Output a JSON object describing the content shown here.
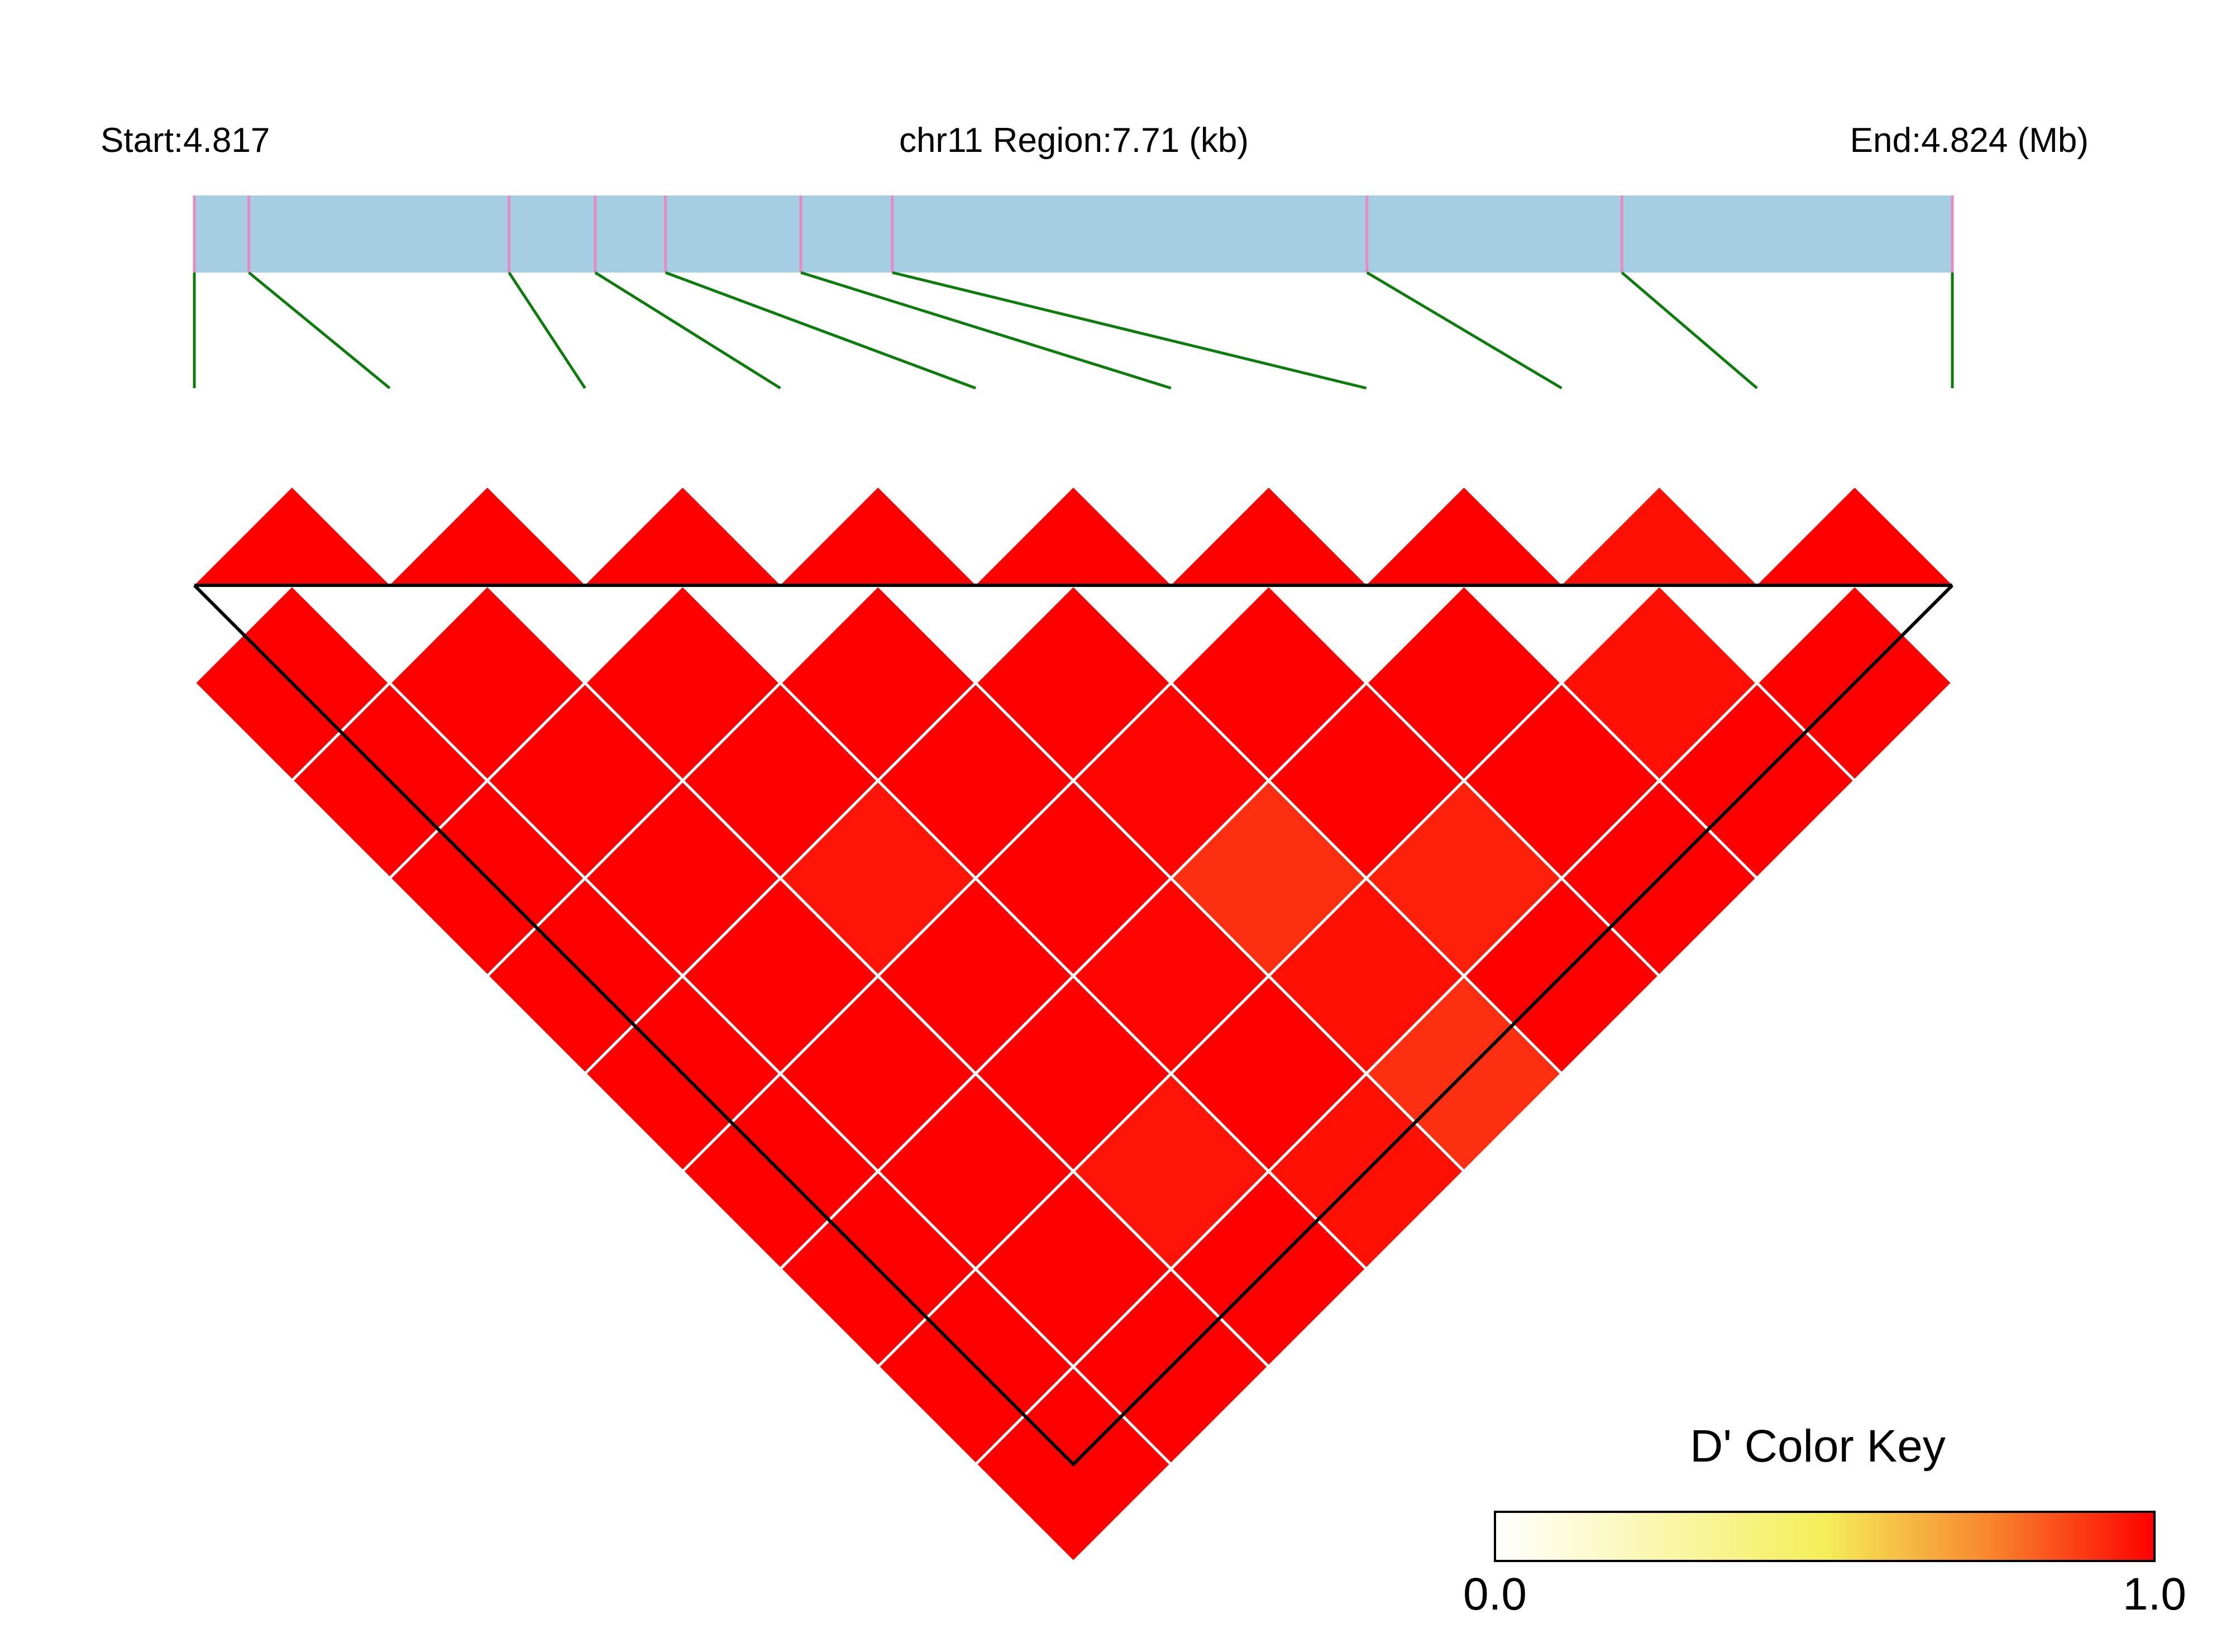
{
  "chart_data": {
    "type": "heatmap",
    "subtype": "linkage-disequilibrium",
    "header": {
      "start_label": "Start:4.817",
      "region_label": "chr11 Region:7.71 (kb)",
      "end_label": "End:4.824 (Mb)"
    },
    "region": {
      "start_mb": 4.817,
      "end_mb": 4.824
    },
    "snp_positions_frac": [
      0.0,
      0.031,
      0.179,
      0.228,
      0.268,
      0.345,
      0.397,
      0.667,
      0.812,
      1.0
    ],
    "matrix": [
      [
        null,
        1.0,
        1.0,
        1.0,
        1.0,
        1.0,
        1.0,
        1.0,
        1.0,
        1.0
      ],
      [
        null,
        null,
        1.0,
        1.0,
        1.0,
        1.0,
        1.0,
        1.0,
        1.0,
        1.0
      ],
      [
        null,
        null,
        null,
        1.0,
        1.0,
        0.96,
        1.0,
        1.0,
        0.96,
        1.0
      ],
      [
        null,
        null,
        null,
        null,
        1.0,
        1.0,
        1.0,
        0.99,
        1.0,
        0.97
      ],
      [
        null,
        null,
        null,
        null,
        null,
        1.0,
        0.99,
        0.91,
        0.97,
        0.91
      ],
      [
        null,
        null,
        null,
        null,
        null,
        null,
        1.0,
        1.0,
        0.94,
        1.0
      ],
      [
        null,
        null,
        null,
        null,
        null,
        null,
        null,
        1.0,
        1.0,
        1.0
      ],
      [
        null,
        null,
        null,
        null,
        null,
        null,
        null,
        null,
        0.97,
        1.0
      ],
      [
        null,
        null,
        null,
        null,
        null,
        null,
        null,
        null,
        null,
        1.0
      ],
      [
        null,
        null,
        null,
        null,
        null,
        null,
        null,
        null,
        null,
        null
      ]
    ],
    "colors": {
      "gene_bar": "#a6cee3",
      "snp_tick": "#e78ac3",
      "connector": "#0a7d0a",
      "cell_grid": "#ffffff",
      "outline": "#000000",
      "scale": [
        "#ffffff",
        "#f5ee5a",
        "#f7862d",
        "#ff0000"
      ]
    },
    "legend": {
      "title": "D' Color Key",
      "min_label": "0.0",
      "max_label": "1.0",
      "min": 0.0,
      "max": 1.0,
      "placement": "bottom-right"
    }
  }
}
